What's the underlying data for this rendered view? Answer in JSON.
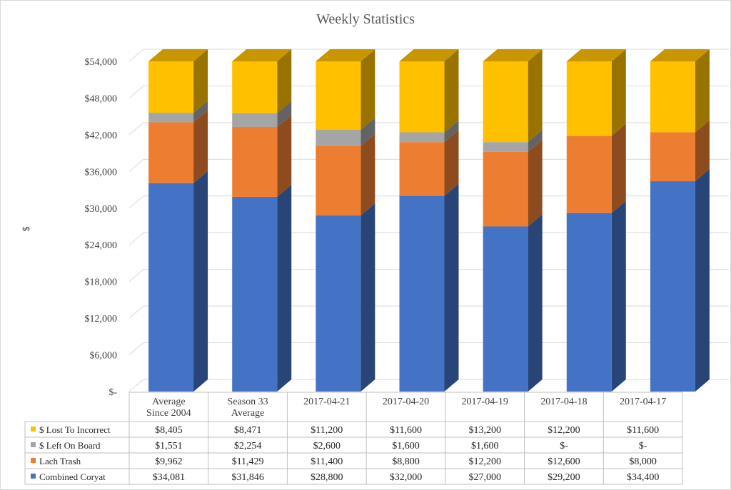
{
  "chart_data": {
    "type": "bar",
    "stacked": true,
    "three_d": true,
    "title": "Weekly Statistics",
    "ylabel": "$",
    "ylim": [
      0,
      54000
    ],
    "yticks": [
      0,
      6000,
      12000,
      18000,
      24000,
      30000,
      36000,
      42000,
      48000,
      54000
    ],
    "ytick_labels": [
      "$-",
      "$6,000",
      "$12,000",
      "$18,000",
      "$24,000",
      "$30,000",
      "$36,000",
      "$42,000",
      "$48,000",
      "$54,000"
    ],
    "grid": true,
    "categories": [
      [
        "Average",
        "Since 2004"
      ],
      [
        "Season 33",
        "Average"
      ],
      [
        "2017-04-21"
      ],
      [
        "2017-04-20"
      ],
      [
        "2017-04-19"
      ],
      [
        "2017-04-18"
      ],
      [
        "2017-04-17"
      ]
    ],
    "series": [
      {
        "name": "Combined Coryat",
        "color": "#4472C4",
        "values": [
          34081,
          31846,
          28800,
          32000,
          27000,
          29200,
          34400
        ],
        "labels": [
          "$34,081",
          "$31,846",
          "$28,800",
          "$32,000",
          "$27,000",
          "$29,200",
          "$34,400"
        ]
      },
      {
        "name": "Lach Trash",
        "color": "#ED7D31",
        "values": [
          9962,
          11429,
          11400,
          8800,
          12200,
          12600,
          8000
        ],
        "labels": [
          "$9,962",
          "$11,429",
          "$11,400",
          "$8,800",
          "$12,200",
          "$12,600",
          "$8,000"
        ]
      },
      {
        "name": "$ Left On Board",
        "color": "#A5A5A5",
        "values": [
          1551,
          2254,
          2600,
          1600,
          1600,
          0,
          0
        ],
        "labels": [
          "$1,551",
          "$2,254",
          "$2,600",
          "$1,600",
          "$1,600",
          "$-",
          "$-"
        ]
      },
      {
        "name": "$ Lost To Incorrect",
        "color": "#FFC000",
        "values": [
          8405,
          8471,
          11200,
          11600,
          13200,
          12200,
          11600
        ],
        "labels": [
          "$8,405",
          "$8,471",
          "$11,200",
          "$11,600",
          "$13,200",
          "$12,200",
          "$11,600"
        ]
      }
    ],
    "table_row_order": [
      "$ Lost To Incorrect",
      "$ Left On Board",
      "Lach Trash",
      "Combined Coryat"
    ]
  }
}
